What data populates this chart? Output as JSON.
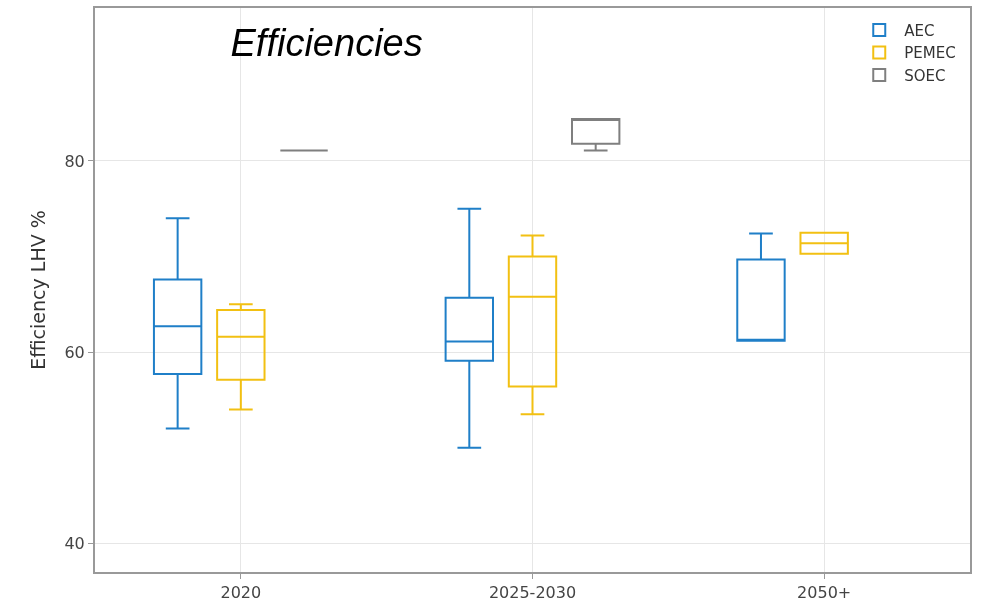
{
  "chart_data": {
    "type": "box",
    "title": "Efficiencies",
    "ylabel": "Efficiency LHV %",
    "categories": [
      "2020",
      "2025-2030",
      "2050+"
    ],
    "series": [
      {
        "name": "AEC",
        "color": "#1f7fc8",
        "boxes": [
          {
            "low": 52,
            "q1": 57.7,
            "median": 62.7,
            "q3": 67.6,
            "high": 74
          },
          {
            "low": 50,
            "q1": 59.1,
            "median": 61.1,
            "q3": 65.7,
            "high": 75
          },
          {
            "low": 61.2,
            "q1": 61.2,
            "median": 61.2,
            "q3": 69.7,
            "high": 72.4
          }
        ]
      },
      {
        "name": "PEMEC",
        "color": "#f2c012",
        "boxes": [
          {
            "low": 54,
            "q1": 57.1,
            "median": 61.6,
            "q3": 64.4,
            "high": 65
          },
          {
            "low": 53.5,
            "q1": 56.4,
            "median": 65.8,
            "q3": 70,
            "high": 72.2
          },
          {
            "low": 70.3,
            "q1": 70.3,
            "median": 71.4,
            "q3": 72.5,
            "high": 72.5
          }
        ]
      },
      {
        "name": "SOEC",
        "color": "#7f7f7f",
        "boxes": [
          {
            "low": 81.1,
            "q1": 81.1,
            "median": 81.1,
            "q3": 81.1,
            "high": 81.1
          },
          {
            "low": 81.1,
            "q1": 81.8,
            "median": 84.3,
            "q3": 84.4,
            "high": 84.4
          },
          null
        ]
      }
    ],
    "ylim": [
      37,
      96
    ],
    "yticks": [
      40,
      60,
      80
    ],
    "grid": true,
    "legend": "top right"
  }
}
